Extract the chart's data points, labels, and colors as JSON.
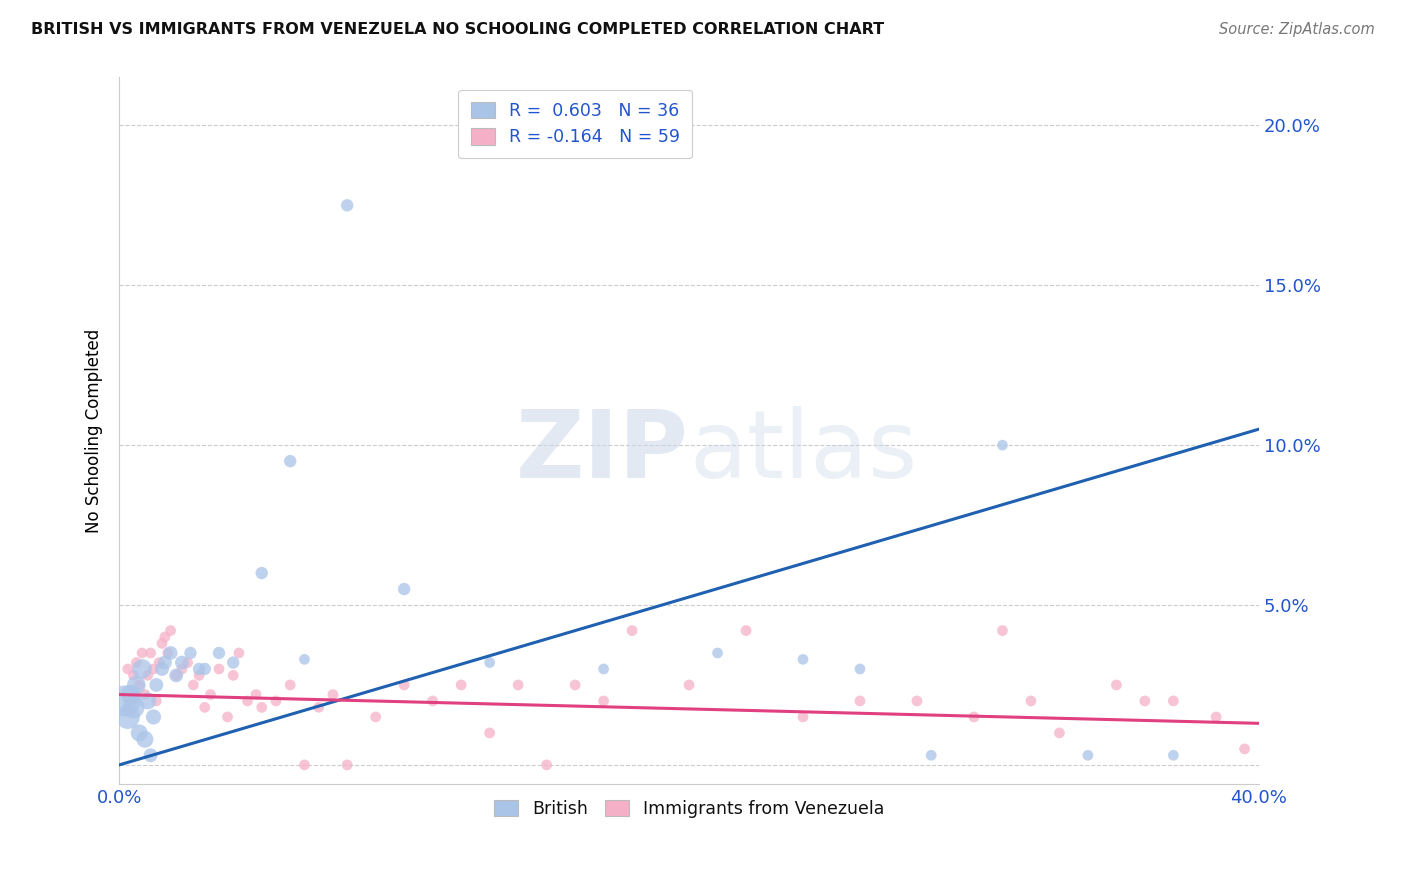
{
  "title": "BRITISH VS IMMIGRANTS FROM VENEZUELA NO SCHOOLING COMPLETED CORRELATION CHART",
  "source": "Source: ZipAtlas.com",
  "ylabel": "No Schooling Completed",
  "ytick_values": [
    0.0,
    0.05,
    0.1,
    0.15,
    0.2
  ],
  "ytick_labels": [
    "",
    "5.0%",
    "10.0%",
    "15.0%",
    "20.0%"
  ],
  "xlim": [
    0.0,
    0.4
  ],
  "ylim": [
    -0.006,
    0.215
  ],
  "british_R": 0.603,
  "british_N": 36,
  "venezuela_R": -0.164,
  "venezuela_N": 59,
  "british_color": "#aac4e8",
  "british_line_color": "#2060b0",
  "venezuela_color": "#f5b0c8",
  "venezuela_line_color": "#e04080",
  "legend_british_label": "British",
  "legend_venezuela_label": "Immigrants from Venezuela",
  "british_line_x": [
    0.0,
    0.4
  ],
  "british_line_y": [
    0.0,
    0.105
  ],
  "venezuela_line_x": [
    0.0,
    0.4
  ],
  "venezuela_line_y": [
    0.022,
    0.013
  ],
  "british_x": [
    0.002,
    0.003,
    0.004,
    0.005,
    0.006,
    0.007,
    0.008,
    0.009,
    0.01,
    0.011,
    0.012,
    0.013,
    0.015,
    0.016,
    0.018,
    0.02,
    0.022,
    0.025,
    0.028,
    0.03,
    0.035,
    0.04,
    0.05,
    0.06,
    0.065,
    0.08,
    0.1,
    0.13,
    0.17,
    0.21,
    0.24,
    0.26,
    0.285,
    0.31,
    0.34,
    0.37
  ],
  "british_y": [
    0.02,
    0.015,
    0.022,
    0.018,
    0.025,
    0.01,
    0.03,
    0.008,
    0.02,
    0.003,
    0.015,
    0.025,
    0.03,
    0.032,
    0.035,
    0.028,
    0.032,
    0.035,
    0.03,
    0.03,
    0.035,
    0.032,
    0.06,
    0.095,
    0.033,
    0.175,
    0.055,
    0.032,
    0.03,
    0.035,
    0.033,
    0.03,
    0.003,
    0.1,
    0.003,
    0.003
  ],
  "british_size": [
    500,
    300,
    200,
    250,
    180,
    150,
    200,
    150,
    150,
    100,
    120,
    100,
    100,
    100,
    100,
    100,
    100,
    80,
    80,
    80,
    80,
    80,
    80,
    80,
    60,
    80,
    80,
    60,
    60,
    60,
    60,
    60,
    60,
    60,
    60,
    60
  ],
  "venezuela_x": [
    0.003,
    0.005,
    0.006,
    0.007,
    0.008,
    0.009,
    0.01,
    0.011,
    0.012,
    0.013,
    0.014,
    0.015,
    0.016,
    0.017,
    0.018,
    0.02,
    0.022,
    0.024,
    0.026,
    0.028,
    0.03,
    0.032,
    0.035,
    0.038,
    0.04,
    0.042,
    0.045,
    0.048,
    0.05,
    0.055,
    0.06,
    0.065,
    0.07,
    0.075,
    0.08,
    0.09,
    0.1,
    0.11,
    0.12,
    0.13,
    0.14,
    0.15,
    0.16,
    0.17,
    0.18,
    0.2,
    0.22,
    0.24,
    0.26,
    0.28,
    0.3,
    0.31,
    0.32,
    0.33,
    0.35,
    0.36,
    0.37,
    0.385,
    0.395
  ],
  "venezuela_y": [
    0.03,
    0.028,
    0.032,
    0.025,
    0.035,
    0.022,
    0.028,
    0.035,
    0.03,
    0.02,
    0.032,
    0.038,
    0.04,
    0.035,
    0.042,
    0.028,
    0.03,
    0.032,
    0.025,
    0.028,
    0.018,
    0.022,
    0.03,
    0.015,
    0.028,
    0.035,
    0.02,
    0.022,
    0.018,
    0.02,
    0.025,
    0.0,
    0.018,
    0.022,
    0.0,
    0.015,
    0.025,
    0.02,
    0.025,
    0.01,
    0.025,
    0.0,
    0.025,
    0.02,
    0.042,
    0.025,
    0.042,
    0.015,
    0.02,
    0.02,
    0.015,
    0.042,
    0.02,
    0.01,
    0.025,
    0.02,
    0.02,
    0.015,
    0.005
  ],
  "venezuela_size": [
    60,
    60,
    60,
    60,
    60,
    60,
    60,
    60,
    60,
    60,
    60,
    60,
    60,
    60,
    60,
    60,
    60,
    60,
    60,
    60,
    60,
    60,
    60,
    60,
    60,
    60,
    60,
    60,
    60,
    60,
    60,
    60,
    60,
    60,
    60,
    60,
    60,
    60,
    60,
    60,
    60,
    60,
    60,
    60,
    60,
    60,
    60,
    60,
    60,
    60,
    60,
    60,
    60,
    60,
    60,
    60,
    60,
    60,
    60
  ]
}
